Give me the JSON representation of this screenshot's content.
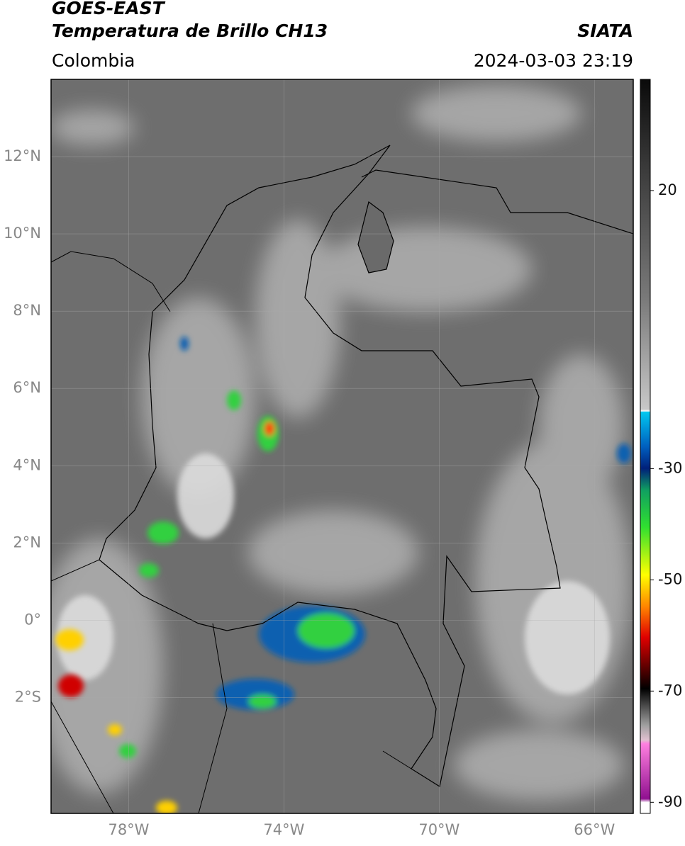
{
  "header": {
    "satellite": "GOES-EAST",
    "product": "Temperatura de Brillo CH13",
    "source": "SIATA",
    "region": "Colombia",
    "datetime": "2024-03-03 23:19"
  },
  "map": {
    "latlim": [
      -5,
      14
    ],
    "lonlim": [
      -80,
      -65
    ],
    "lat_ticks": [
      {
        "value": 12,
        "label": "12°N"
      },
      {
        "value": 10,
        "label": "10°N"
      },
      {
        "value": 8,
        "label": "8°N"
      },
      {
        "value": 6,
        "label": "6°N"
      },
      {
        "value": 4,
        "label": "4°N"
      },
      {
        "value": 2,
        "label": "2°N"
      },
      {
        "value": 0,
        "label": "0°"
      },
      {
        "value": -2,
        "label": "2°S"
      }
    ],
    "lon_ticks": [
      {
        "value": -78,
        "label": "78°W"
      },
      {
        "value": -74,
        "label": "74°W"
      },
      {
        "value": -70,
        "label": "70°W"
      },
      {
        "value": -66,
        "label": "66°W"
      }
    ]
  },
  "colorbar": {
    "lim": [
      -92,
      40
    ],
    "ticks": [
      20,
      -30,
      -50,
      -70,
      -90
    ]
  }
}
